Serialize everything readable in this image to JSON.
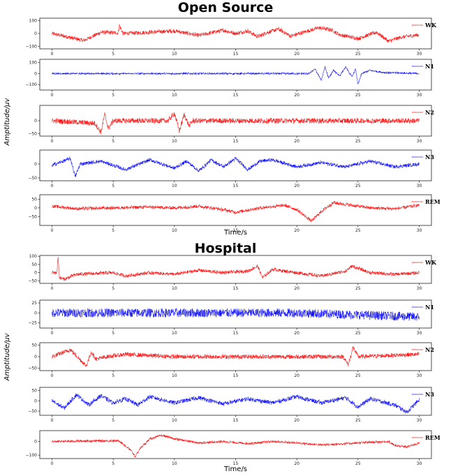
{
  "chart_data": [
    {
      "type": "line",
      "section": "Open Source",
      "xlabel": "Time/s",
      "ylabel": "Amptitude/μv",
      "xlim": [
        -1,
        31
      ],
      "xticks": [
        0,
        5,
        10,
        15,
        20,
        25,
        30
      ],
      "panels": [
        {
          "stage": "WK",
          "color": "#ff0000",
          "ylim": [
            -120,
            120
          ],
          "yticks": [
            100,
            0,
            -100
          ],
          "anchors": [
            [
              0,
              0
            ],
            [
              2.6,
              -55
            ],
            [
              4,
              10
            ],
            [
              5.4,
              5
            ],
            [
              5.5,
              65
            ],
            [
              5.8,
              0
            ],
            [
              8,
              10
            ],
            [
              10,
              20
            ],
            [
              12,
              -15
            ],
            [
              14,
              25
            ],
            [
              15,
              0
            ],
            [
              16,
              20
            ],
            [
              16.8,
              -25
            ],
            [
              17.5,
              5
            ],
            [
              18.5,
              35
            ],
            [
              19.5,
              -20
            ],
            [
              21.8,
              45
            ],
            [
              22.8,
              30
            ],
            [
              23.5,
              -10
            ],
            [
              25,
              -40
            ],
            [
              26.5,
              10
            ],
            [
              27.5,
              -60
            ],
            [
              28.5,
              -30
            ],
            [
              30,
              -10
            ]
          ],
          "noise": 15
        },
        {
          "stage": "N1",
          "color": "#0000ff",
          "ylim": [
            -150,
            130
          ],
          "yticks": [
            100,
            0,
            -100
          ],
          "anchors": [
            [
              0,
              0
            ],
            [
              21,
              0
            ],
            [
              21.5,
              40
            ],
            [
              22,
              -60
            ],
            [
              22.3,
              60
            ],
            [
              22.6,
              -40
            ],
            [
              23,
              30
            ],
            [
              23.5,
              -20
            ],
            [
              24,
              60
            ],
            [
              24.5,
              -30
            ],
            [
              24.8,
              40
            ],
            [
              25,
              -100
            ],
            [
              25.3,
              0
            ],
            [
              26,
              30
            ],
            [
              27,
              10
            ],
            [
              30,
              0
            ]
          ],
          "noise": 7
        },
        {
          "stage": "N2",
          "color": "#ff0000",
          "ylim": [
            -60,
            60
          ],
          "yticks": [
            0,
            -50
          ],
          "anchors": [
            [
              0,
              0
            ],
            [
              3.5,
              -10
            ],
            [
              4,
              -45
            ],
            [
              4.3,
              25
            ],
            [
              4.6,
              -30
            ],
            [
              5,
              0
            ],
            [
              9.5,
              0
            ],
            [
              10,
              30
            ],
            [
              10.4,
              -40
            ],
            [
              10.8,
              25
            ],
            [
              11.2,
              -20
            ],
            [
              11.5,
              0
            ],
            [
              30,
              0
            ]
          ],
          "noise": 10
        },
        {
          "stage": "N3",
          "color": "#0000ff",
          "ylim": [
            -60,
            50
          ],
          "yticks": [
            0,
            -50
          ],
          "anchors": [
            [
              0,
              -5
            ],
            [
              1.5,
              20
            ],
            [
              1.9,
              -45
            ],
            [
              2.3,
              0
            ],
            [
              4,
              10
            ],
            [
              6,
              -20
            ],
            [
              8,
              15
            ],
            [
              10,
              -15
            ],
            [
              11,
              10
            ],
            [
              12,
              -25
            ],
            [
              13,
              15
            ],
            [
              14,
              -10
            ],
            [
              15,
              20
            ],
            [
              16,
              -20
            ],
            [
              17,
              10
            ],
            [
              18,
              15
            ],
            [
              20,
              -10
            ],
            [
              22,
              5
            ],
            [
              24,
              -10
            ],
            [
              26,
              10
            ],
            [
              28,
              -10
            ],
            [
              30,
              0
            ]
          ],
          "noise": 6
        },
        {
          "stage": "REM",
          "color": "#ff0000",
          "ylim": [
            -100,
            75
          ],
          "yticks": [
            50,
            0,
            -50
          ],
          "anchors": [
            [
              0,
              10
            ],
            [
              2,
              -5
            ],
            [
              5,
              0
            ],
            [
              8,
              5
            ],
            [
              10,
              0
            ],
            [
              12,
              10
            ],
            [
              14,
              -10
            ],
            [
              15,
              -25
            ],
            [
              17,
              0
            ],
            [
              19,
              15
            ],
            [
              20,
              -10
            ],
            [
              21.2,
              -75
            ],
            [
              22,
              -20
            ],
            [
              23,
              30
            ],
            [
              24,
              20
            ],
            [
              26,
              0
            ],
            [
              28,
              -5
            ],
            [
              30,
              15
            ]
          ],
          "noise": 9
        }
      ]
    },
    {
      "type": "line",
      "section": "Hospital",
      "xlabel": "Time/s",
      "ylabel": "Amptitude/μv",
      "xlim": [
        -1,
        31
      ],
      "xticks": [
        0,
        5,
        10,
        15,
        20,
        25,
        30
      ],
      "panels": [
        {
          "stage": "WK",
          "color": "#ff0000",
          "ylim": [
            -65,
            105
          ],
          "yticks": [
            100,
            50,
            0,
            -50
          ],
          "anchors": [
            [
              0,
              0
            ],
            [
              0.4,
              0
            ],
            [
              0.5,
              100
            ],
            [
              0.6,
              -30
            ],
            [
              1,
              -40
            ],
            [
              2,
              -10
            ],
            [
              5,
              0
            ],
            [
              6,
              -20
            ],
            [
              8,
              0
            ],
            [
              10,
              -10
            ],
            [
              12,
              15
            ],
            [
              14,
              0
            ],
            [
              16,
              10
            ],
            [
              16.8,
              40
            ],
            [
              17.2,
              -30
            ],
            [
              18,
              20
            ],
            [
              20,
              0
            ],
            [
              22,
              -20
            ],
            [
              24,
              10
            ],
            [
              24.5,
              40
            ],
            [
              26,
              0
            ],
            [
              28,
              -10
            ],
            [
              30,
              0
            ]
          ],
          "noise": 10
        },
        {
          "stage": "N1",
          "color": "#0000ff",
          "ylim": [
            -38,
            32
          ],
          "yticks": [
            25,
            0,
            -25
          ],
          "anchors": [
            [
              0,
              0
            ],
            [
              10,
              0
            ],
            [
              20,
              0
            ],
            [
              30,
              -10
            ]
          ],
          "noise": 11
        },
        {
          "stage": "N2",
          "color": "#ff0000",
          "ylim": [
            -60,
            60
          ],
          "yticks": [
            50,
            0,
            -50
          ],
          "anchors": [
            [
              0,
              0
            ],
            [
              1.5,
              30
            ],
            [
              2.8,
              -40
            ],
            [
              3.2,
              20
            ],
            [
              3.6,
              -10
            ],
            [
              4.5,
              0
            ],
            [
              6,
              10
            ],
            [
              10,
              0
            ],
            [
              15,
              0
            ],
            [
              20,
              0
            ],
            [
              23.8,
              0
            ],
            [
              24.2,
              -35
            ],
            [
              24.6,
              40
            ],
            [
              25,
              0
            ],
            [
              30,
              10
            ]
          ],
          "noise": 9
        },
        {
          "stage": "N3",
          "color": "#0000ff",
          "ylim": [
            -70,
            65
          ],
          "yticks": [
            50,
            0,
            -50
          ],
          "anchors": [
            [
              0,
              0
            ],
            [
              1,
              -35
            ],
            [
              2,
              30
            ],
            [
              3,
              -20
            ],
            [
              4,
              25
            ],
            [
              5,
              -10
            ],
            [
              6,
              10
            ],
            [
              7,
              -20
            ],
            [
              8,
              20
            ],
            [
              10,
              -10
            ],
            [
              12,
              15
            ],
            [
              14,
              -15
            ],
            [
              16,
              10
            ],
            [
              18,
              -10
            ],
            [
              20,
              20
            ],
            [
              22,
              -10
            ],
            [
              24,
              15
            ],
            [
              25,
              -30
            ],
            [
              26,
              10
            ],
            [
              28,
              -20
            ],
            [
              29,
              -55
            ],
            [
              30,
              5
            ]
          ],
          "noise": 10
        },
        {
          "stage": "REM",
          "color": "#ff0000",
          "ylim": [
            -125,
            80
          ],
          "yticks": [
            0,
            -100
          ],
          "anchors": [
            [
              0,
              0
            ],
            [
              3,
              5
            ],
            [
              5.5,
              5
            ],
            [
              6.5,
              -70
            ],
            [
              6.8,
              -110
            ],
            [
              7.2,
              -50
            ],
            [
              8,
              20
            ],
            [
              9,
              45
            ],
            [
              10,
              20
            ],
            [
              12,
              -10
            ],
            [
              14,
              0
            ],
            [
              16,
              -15
            ],
            [
              18,
              0
            ],
            [
              20,
              -10
            ],
            [
              22,
              -25
            ],
            [
              24,
              -15
            ],
            [
              26,
              -5
            ],
            [
              27.5,
              0
            ],
            [
              28,
              -30
            ],
            [
              29,
              -40
            ],
            [
              30,
              -10
            ]
          ],
          "noise": 8
        }
      ]
    }
  ]
}
